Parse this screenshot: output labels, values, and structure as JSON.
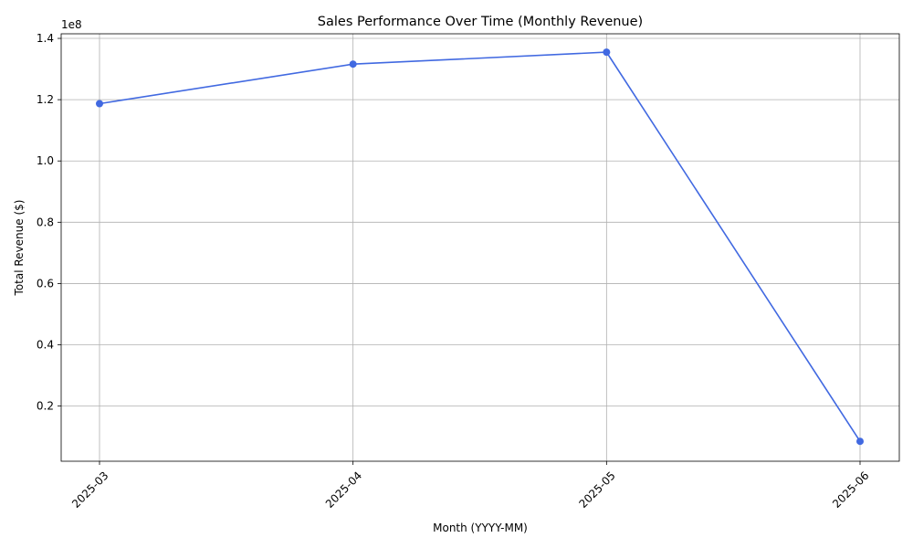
{
  "chart_data": {
    "type": "line",
    "title": "Sales Performance Over Time (Monthly Revenue)",
    "xlabel": "Month (YYYY-MM)",
    "ylabel": "Total Revenue ($)",
    "y_offset_label": "1e8",
    "categories": [
      "2025-03",
      "2025-04",
      "2025-05",
      "2025-06"
    ],
    "series": [
      {
        "values": [
          118700000,
          131600000,
          135500000,
          8500000
        ],
        "color": "#4169e1"
      }
    ],
    "ylim": [
      2000000,
      141500000
    ],
    "yticks": [
      {
        "value": 20000000,
        "label": "0.2"
      },
      {
        "value": 40000000,
        "label": "0.4"
      },
      {
        "value": 60000000,
        "label": "0.6"
      },
      {
        "value": 80000000,
        "label": "0.8"
      },
      {
        "value": 100000000,
        "label": "1.0"
      },
      {
        "value": 120000000,
        "label": "1.2"
      },
      {
        "value": 140000000,
        "label": "1.4"
      }
    ],
    "grid": true,
    "markers": "circle"
  }
}
